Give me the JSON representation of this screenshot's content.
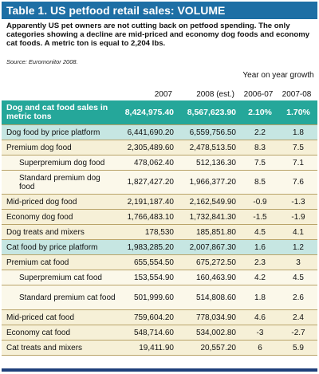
{
  "title": "Table 1. US petfood retail sales: VOLUME",
  "intro": "Apparently US pet owners are not cutting back on petfood spending. The only categories showing a decline are mid-priced and economy dog foods and economy cat foods. A metric ton is equal to 2,204 lbs.",
  "source": "Source: Euromonitor 2008.",
  "headers": {
    "y2007": "2007",
    "y2008": "2008 (est.)",
    "growth": "Year on year growth",
    "g1": "2006-07",
    "g2": "2007-08"
  },
  "rows": [
    {
      "label": "Dog and cat food sales in metric tons",
      "v2007": "8,424,975.40",
      "v2008": "8,567,623.90",
      "g0607": "2.10%",
      "g0708": "1.70%"
    },
    {
      "label": "Dog food by price platform",
      "v2007": "6,441,690.20",
      "v2008": "6,559,756.50",
      "g0607": "2.2",
      "g0708": "1.8"
    },
    {
      "label": "Premium dog food",
      "v2007": "2,305,489.60",
      "v2008": "2,478,513.50",
      "g0607": "8.3",
      "g0708": "7.5"
    },
    {
      "label": "Superpremium dog food",
      "v2007": "478,062.40",
      "v2008": "512,136.30",
      "g0607": "7.5",
      "g0708": "7.1"
    },
    {
      "label": "Standard premium dog food",
      "v2007": "1,827,427.20",
      "v2008": "1,966,377.20",
      "g0607": "8.5",
      "g0708": "7.6"
    },
    {
      "label": "Mid-priced dog food",
      "v2007": "2,191,187.40",
      "v2008": "2,162,549.90",
      "g0607": "-0.9",
      "g0708": "-1.3"
    },
    {
      "label": "Economy dog food",
      "v2007": "1,766,483.10",
      "v2008": "1,732,841.30",
      "g0607": "-1.5",
      "g0708": "-1.9"
    },
    {
      "label": "Dog treats and mixers",
      "v2007": "178,530",
      "v2008": "185,851.80",
      "g0607": "4.5",
      "g0708": "4.1"
    },
    {
      "label": "Cat food by price platform",
      "v2007": "1,983,285.20",
      "v2008": "2,007,867.30",
      "g0607": "1.6",
      "g0708": "1.2"
    },
    {
      "label": "Premium cat food",
      "v2007": "655,554.50",
      "v2008": "675,272.50",
      "g0607": "2.3",
      "g0708": "3"
    },
    {
      "label": "Superpremium cat food",
      "v2007": "153,554.90",
      "v2008": "160,463.90",
      "g0607": "4.2",
      "g0708": "4.5"
    },
    {
      "label": "Standard premium cat food",
      "v2007": "501,999.60",
      "v2008": "514,808.60",
      "g0607": "1.8",
      "g0708": "2.6"
    },
    {
      "label": "Mid-priced cat food",
      "v2007": "759,604.20",
      "v2008": "778,034.90",
      "g0607": "4.6",
      "g0708": "2.4"
    },
    {
      "label": "Economy cat food",
      "v2007": "548,714.60",
      "v2008": "534,002.80",
      "g0607": "-3",
      "g0708": "-2.7"
    },
    {
      "label": "Cat treats and mixers",
      "v2007": "19,411.90",
      "v2008": "20,557.20",
      "g0607": "6",
      "g0708": "5.9"
    }
  ]
}
